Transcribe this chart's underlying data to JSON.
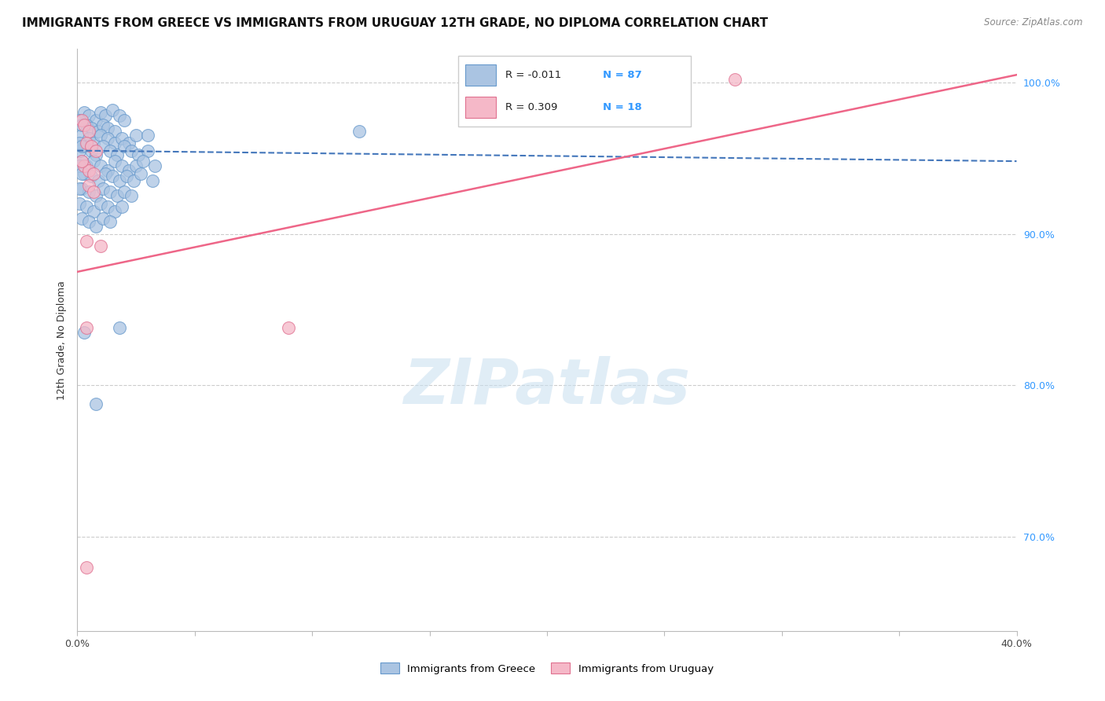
{
  "title": "IMMIGRANTS FROM GREECE VS IMMIGRANTS FROM URUGUAY 12TH GRADE, NO DIPLOMA CORRELATION CHART",
  "source": "Source: ZipAtlas.com",
  "ylabel": "12th Grade, No Diploma",
  "xlim": [
    0.0,
    0.4
  ],
  "ylim": [
    0.638,
    1.022
  ],
  "xtick_positions": [
    0.0,
    0.05,
    0.1,
    0.15,
    0.2,
    0.25,
    0.3,
    0.35,
    0.4
  ],
  "xtick_labels": [
    "0.0%",
    "",
    "",
    "",
    "",
    "",
    "",
    "",
    "40.0%"
  ],
  "ytick_positions": [
    0.7,
    0.8,
    0.9,
    1.0
  ],
  "ytick_labels": [
    "70.0%",
    "80.0%",
    "90.0%",
    "100.0%"
  ],
  "greece_R": -0.011,
  "greece_N": 87,
  "uruguay_R": 0.309,
  "uruguay_N": 18,
  "greece_color": "#aac4e2",
  "greece_edge_color": "#6699cc",
  "uruguay_color": "#f5b8c8",
  "uruguay_edge_color": "#e07090",
  "greece_line_color": "#4477bb",
  "uruguay_line_color": "#ee6688",
  "legend_label_greece": "Immigrants from Greece",
  "legend_label_uruguay": "Immigrants from Uruguay",
  "greece_line_y0": 0.955,
  "greece_line_y1": 0.948,
  "uruguay_line_y0": 0.875,
  "uruguay_line_y1": 1.005,
  "greece_scatter": [
    [
      0.003,
      0.98
    ],
    [
      0.005,
      0.978
    ],
    [
      0.008,
      0.975
    ],
    [
      0.01,
      0.98
    ],
    [
      0.012,
      0.978
    ],
    [
      0.015,
      0.982
    ],
    [
      0.018,
      0.978
    ],
    [
      0.02,
      0.975
    ],
    [
      0.004,
      0.972
    ],
    [
      0.006,
      0.97
    ],
    [
      0.009,
      0.968
    ],
    [
      0.011,
      0.972
    ],
    [
      0.013,
      0.97
    ],
    [
      0.016,
      0.968
    ],
    [
      0.002,
      0.965
    ],
    [
      0.005,
      0.963
    ],
    [
      0.007,
      0.96
    ],
    [
      0.01,
      0.965
    ],
    [
      0.013,
      0.963
    ],
    [
      0.016,
      0.96
    ],
    [
      0.019,
      0.963
    ],
    [
      0.022,
      0.96
    ],
    [
      0.025,
      0.965
    ],
    [
      0.003,
      0.958
    ],
    [
      0.006,
      0.955
    ],
    [
      0.008,
      0.952
    ],
    [
      0.011,
      0.958
    ],
    [
      0.014,
      0.955
    ],
    [
      0.017,
      0.952
    ],
    [
      0.02,
      0.958
    ],
    [
      0.023,
      0.955
    ],
    [
      0.026,
      0.952
    ],
    [
      0.03,
      0.955
    ],
    [
      0.002,
      0.948
    ],
    [
      0.004,
      0.945
    ],
    [
      0.007,
      0.948
    ],
    [
      0.01,
      0.945
    ],
    [
      0.013,
      0.942
    ],
    [
      0.016,
      0.948
    ],
    [
      0.019,
      0.945
    ],
    [
      0.022,
      0.942
    ],
    [
      0.025,
      0.945
    ],
    [
      0.028,
      0.948
    ],
    [
      0.033,
      0.945
    ],
    [
      0.003,
      0.94
    ],
    [
      0.006,
      0.938
    ],
    [
      0.009,
      0.935
    ],
    [
      0.012,
      0.94
    ],
    [
      0.015,
      0.938
    ],
    [
      0.018,
      0.935
    ],
    [
      0.021,
      0.938
    ],
    [
      0.024,
      0.935
    ],
    [
      0.027,
      0.94
    ],
    [
      0.032,
      0.935
    ],
    [
      0.002,
      0.93
    ],
    [
      0.005,
      0.928
    ],
    [
      0.008,
      0.925
    ],
    [
      0.011,
      0.93
    ],
    [
      0.014,
      0.928
    ],
    [
      0.017,
      0.925
    ],
    [
      0.02,
      0.928
    ],
    [
      0.023,
      0.925
    ],
    [
      0.001,
      0.92
    ],
    [
      0.004,
      0.918
    ],
    [
      0.007,
      0.915
    ],
    [
      0.01,
      0.92
    ],
    [
      0.013,
      0.918
    ],
    [
      0.016,
      0.915
    ],
    [
      0.019,
      0.918
    ],
    [
      0.002,
      0.91
    ],
    [
      0.005,
      0.908
    ],
    [
      0.008,
      0.905
    ],
    [
      0.011,
      0.91
    ],
    [
      0.014,
      0.908
    ],
    [
      0.03,
      0.965
    ],
    [
      0.003,
      0.835
    ],
    [
      0.018,
      0.838
    ],
    [
      0.008,
      0.788
    ],
    [
      0.12,
      0.968
    ],
    [
      0.001,
      0.955
    ],
    [
      0.001,
      0.945
    ],
    [
      0.002,
      0.94
    ],
    [
      0.001,
      0.93
    ],
    [
      0.001,
      0.96
    ],
    [
      0.002,
      0.958
    ],
    [
      0.001,
      0.975
    ],
    [
      0.002,
      0.972
    ]
  ],
  "uruguay_scatter": [
    [
      0.002,
      0.975
    ],
    [
      0.003,
      0.972
    ],
    [
      0.005,
      0.968
    ],
    [
      0.004,
      0.96
    ],
    [
      0.006,
      0.958
    ],
    [
      0.008,
      0.955
    ],
    [
      0.003,
      0.945
    ],
    [
      0.005,
      0.942
    ],
    [
      0.007,
      0.94
    ],
    [
      0.005,
      0.932
    ],
    [
      0.007,
      0.928
    ],
    [
      0.004,
      0.895
    ],
    [
      0.01,
      0.892
    ],
    [
      0.004,
      0.838
    ],
    [
      0.09,
      0.838
    ],
    [
      0.004,
      0.68
    ],
    [
      0.28,
      1.002
    ],
    [
      0.002,
      0.948
    ]
  ],
  "watermark_text": "ZIPatlas",
  "title_fontsize": 11,
  "axis_label_fontsize": 9,
  "tick_fontsize": 9,
  "legend_R_color": "#222222",
  "legend_N_color": "#3399ff"
}
